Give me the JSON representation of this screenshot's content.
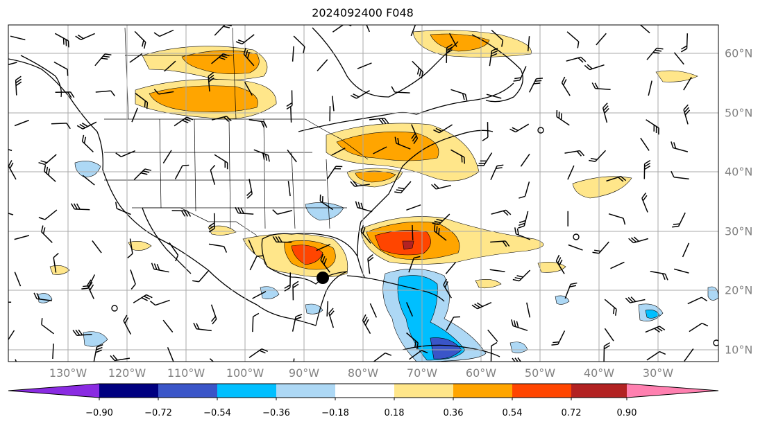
{
  "title": "2024092400 F048",
  "map": {
    "lon_labels": [
      "130°W",
      "120°W",
      "110°W",
      "100°W",
      "90°W",
      "80°W",
      "70°W",
      "60°W",
      "50°W",
      "40°W",
      "30°W"
    ],
    "lat_labels": [
      "60°N",
      "50°N",
      "40°N",
      "30°N",
      "20°N",
      "10°N"
    ],
    "storm_marker": "black-dot-icon",
    "wind_barbs": "wind-barb-icon",
    "grid": true
  },
  "colorbar": {
    "labels": [
      "−0.90",
      "−0.72",
      "−0.54",
      "−0.36",
      "−0.18",
      "0.18",
      "0.36",
      "0.54",
      "0.72",
      "0.90"
    ],
    "colors": [
      "#8a2be2",
      "#000080",
      "#3a55c8",
      "#00bfff",
      "#add8f5",
      "#ffffff",
      "#ffe68a",
      "#ffa500",
      "#ff4500",
      "#b22222",
      "#ff80b0"
    ],
    "extend": "both"
  }
}
